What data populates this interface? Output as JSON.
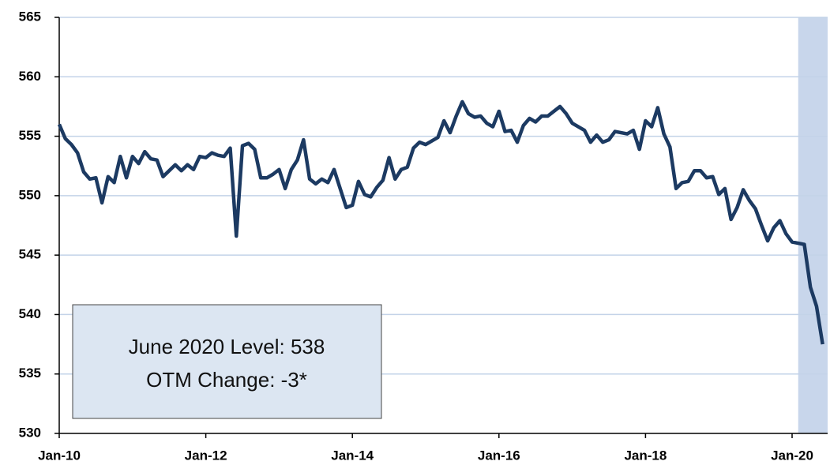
{
  "chart_data": {
    "type": "line",
    "categories": [
      "Jan-10",
      null,
      null,
      null,
      null,
      null,
      null,
      null,
      null,
      null,
      null,
      null,
      null,
      null,
      null,
      null,
      null,
      null,
      null,
      null,
      null,
      null,
      null,
      null,
      "Jan-12",
      null,
      null,
      null,
      null,
      null,
      null,
      null,
      null,
      null,
      null,
      null,
      null,
      null,
      null,
      null,
      null,
      null,
      null,
      null,
      null,
      null,
      null,
      null,
      "Jan-14",
      null,
      null,
      null,
      null,
      null,
      null,
      null,
      null,
      null,
      null,
      null,
      null,
      null,
      null,
      null,
      null,
      null,
      null,
      null,
      null,
      null,
      null,
      null,
      "Jan-16",
      null,
      null,
      null,
      null,
      null,
      null,
      null,
      null,
      null,
      null,
      null,
      null,
      null,
      null,
      null,
      null,
      null,
      null,
      null,
      null,
      null,
      null,
      null,
      "Jan-18",
      null,
      null,
      null,
      null,
      null,
      null,
      null,
      null,
      null,
      null,
      null,
      null,
      null,
      null,
      null,
      null,
      null,
      null,
      null,
      null,
      null,
      null,
      null,
      "Jan-20",
      null,
      null,
      null,
      null,
      null
    ],
    "series": [
      {
        "color": "#1c3a62",
        "values": [
          556.0,
          554.8,
          554.3,
          553.6,
          552.0,
          551.4,
          551.5,
          549.4,
          551.6,
          551.1,
          553.3,
          551.5,
          553.3,
          552.7,
          553.7,
          553.1,
          553.0,
          551.6,
          552.1,
          552.6,
          552.1,
          552.6,
          552.2,
          553.3,
          553.2,
          553.6,
          553.4,
          553.3,
          554.0,
          546.6,
          554.2,
          554.4,
          553.9,
          551.5,
          551.5,
          551.8,
          552.2,
          550.6,
          552.2,
          553.0,
          554.7,
          551.4,
          551.0,
          551.4,
          551.1,
          552.2,
          550.6,
          549.0,
          549.2,
          551.2,
          550.1,
          549.9,
          550.7,
          551.3,
          553.2,
          551.4,
          552.2,
          552.4,
          554.0,
          554.5,
          554.3,
          554.6,
          554.9,
          556.3,
          555.3,
          556.7,
          557.9,
          556.9,
          556.6,
          556.7,
          556.1,
          555.8,
          557.1,
          555.4,
          555.5,
          554.5,
          555.9,
          556.5,
          556.2,
          556.7,
          556.7,
          557.1,
          557.5,
          556.9,
          556.1,
          555.8,
          555.5,
          554.5,
          555.1,
          554.5,
          554.7,
          555.4,
          555.3,
          555.2,
          555.5,
          553.9,
          556.3,
          555.8,
          557.4,
          555.2,
          554.1,
          550.6,
          551.1,
          551.2,
          552.1,
          552.1,
          551.5,
          551.6,
          550.1,
          550.6,
          548.0,
          549.0,
          550.5,
          549.6,
          548.9,
          547.5,
          546.2,
          547.3,
          547.9,
          546.8,
          546.1,
          546.0,
          545.9,
          542.3,
          540.7,
          537.5
        ]
      }
    ],
    "ylim": [
      530,
      565
    ],
    "yticks": [
      530,
      535,
      540,
      545,
      550,
      555,
      560,
      565
    ],
    "grid": true,
    "highlight": {
      "from": 121,
      "color": "#c8d6eb"
    },
    "annotation": {
      "lines": [
        "June 2020 Level: 538",
        "OTM Change: -3*"
      ]
    }
  }
}
